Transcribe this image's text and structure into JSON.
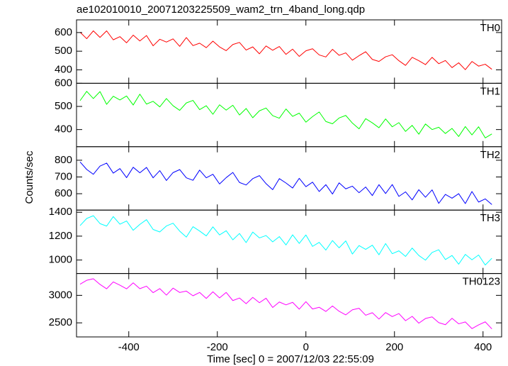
{
  "chart_data": {
    "type": "line",
    "title": "ae102010010_20071203225509_wam2_trn_4band_long.qdp",
    "xlabel": "Time [sec] 0 = 2007/12/03 22:55:09",
    "ylabel": "Counts/sec",
    "xlim": [
      -518,
      442
    ],
    "xticks": [
      -400,
      -200,
      0,
      200,
      400
    ],
    "x": [
      -510,
      -495,
      -480,
      -465,
      -450,
      -435,
      -420,
      -405,
      -390,
      -375,
      -360,
      -345,
      -330,
      -315,
      -300,
      -285,
      -270,
      -255,
      -240,
      -225,
      -210,
      -195,
      -180,
      -165,
      -150,
      -135,
      -120,
      -105,
      -90,
      -75,
      -60,
      -45,
      -30,
      -15,
      0,
      15,
      30,
      45,
      60,
      75,
      90,
      105,
      120,
      135,
      150,
      165,
      180,
      195,
      210,
      225,
      240,
      255,
      270,
      285,
      300,
      315,
      330,
      345,
      360,
      375,
      390,
      405,
      420
    ],
    "series": [
      {
        "name": "TH0",
        "color": "#ff0000",
        "ylim": [
          328,
          668
        ],
        "yticks": [
          400,
          500,
          600
        ],
        "values": [
          602,
          567,
          609,
          574,
          609,
          561,
          578,
          545,
          586,
          555,
          584,
          529,
          564,
          549,
          566,
          526,
          573,
          530,
          543,
          519,
          554,
          523,
          503,
          536,
          547,
          506,
          523,
          486,
          528,
          505,
          525,
          483,
          511,
          472,
          502,
          513,
          480,
          469,
          510,
          478,
          491,
          452,
          476,
          497,
          456,
          445,
          470,
          481,
          449,
          424,
          467,
          449,
          428,
          467,
          433,
          450,
          412,
          438,
          401,
          445,
          420,
          430,
          403
        ]
      },
      {
        "name": "TH1",
        "color": "#00ff00",
        "ylim": [
          326,
          600
        ],
        "yticks": [
          400,
          500,
          600
        ],
        "values": [
          525,
          565,
          534,
          564,
          509,
          544,
          528,
          545,
          506,
          553,
          510,
          522,
          498,
          534,
          503,
          483,
          515,
          526,
          486,
          503,
          466,
          507,
          484,
          505,
          463,
          491,
          451,
          481,
          493,
          460,
          449,
          489,
          457,
          471,
          432,
          456,
          476,
          435,
          425,
          450,
          461,
          428,
          403,
          447,
          429,
          408,
          446,
          412,
          430,
          392,
          418,
          380,
          424,
          400,
          410,
          383,
          405,
          370,
          413,
          377,
          412,
          364,
          381
        ]
      },
      {
        "name": "TH2",
        "color": "#0000ff",
        "ylim": [
          502,
          881
        ],
        "yticks": [
          600,
          700,
          800
        ],
        "values": [
          790,
          745,
          716,
          765,
          783,
          723,
          750,
          696,
          758,
          725,
          757,
          695,
          738,
          679,
          726,
          744,
          695,
          680,
          741,
          695,
          716,
          658,
          696,
          727,
          667,
          652,
          690,
          708,
          660,
          624,
          690,
          664,
          634,
          692,
          642,
          669,
          613,
          654,
          598,
          665,
          629,
          645,
          606,
          640,
          589,
          654,
          601,
          655,
          584,
          611,
          563,
          624,
          579,
          623,
          542,
          596,
          573,
          600,
          541,
          613,
          550,
          569,
          535
        ]
      },
      {
        "name": "TH3",
        "color": "#00ffff",
        "ylim": [
          887,
          1418
        ],
        "yticks": [
          1000,
          1200,
          1400
        ],
        "values": [
          1288,
          1348,
          1371,
          1305,
          1284,
          1364,
          1300,
          1327,
          1249,
          1298,
          1338,
          1256,
          1235,
          1285,
          1308,
          1242,
          1192,
          1279,
          1243,
          1202,
          1278,
          1210,
          1245,
          1169,
          1222,
          1146,
          1234,
          1185,
          1205,
          1152,
          1196,
          1126,
          1211,
          1139,
          1210,
          1114,
          1148,
          1083,
          1163,
          1102,
          1160,
          1050,
          1121,
          1089,
          1124,
          1044,
          1138,
          1053,
          1077,
          1030,
          1100,
          1038,
          999,
          1063,
          1086,
          1004,
          1038,
          965,
          1047,
          1002,
          1042,
          958,
          1015
        ]
      },
      {
        "name": "TH0123",
        "color": "#ff00ff",
        "ylim": [
          2244,
          3397
        ],
        "yticks": [
          2500,
          3000
        ],
        "values": [
          3203,
          3274,
          3302,
          3199,
          3119,
          3244,
          3185,
          3118,
          3227,
          3121,
          3167,
          3049,
          3122,
          3004,
          3131,
          3052,
          3077,
          2992,
          3053,
          2944,
          3065,
          2953,
          3053,
          2905,
          2951,
          2848,
          2963,
          2866,
          2948,
          2779,
          2879,
          2827,
          2873,
          2749,
          2885,
          2752,
          2783,
          2707,
          2807,
          2710,
          2645,
          2737,
          2765,
          2638,
          2684,
          2569,
          2687,
          2614,
          2669,
          2539,
          2618,
          2494,
          2579,
          2608,
          2504,
          2467,
          2582,
          2482,
          2516,
          2395,
          2462,
          2518,
          2390
        ]
      }
    ]
  }
}
